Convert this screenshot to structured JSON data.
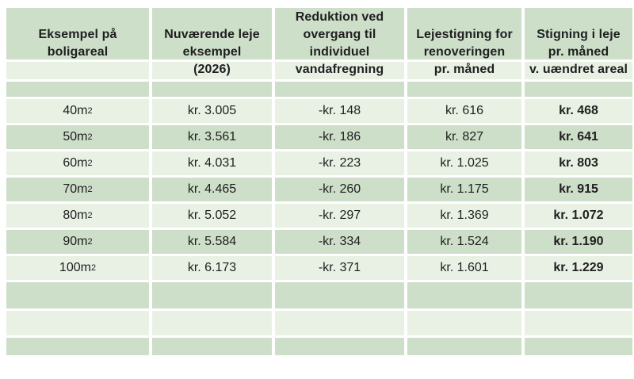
{
  "table": {
    "title_semantic": "Husleje-eksempler tabel",
    "header": {
      "columns": [
        {
          "id": "area",
          "lines": [
            "Eksempel på",
            "boligareal"
          ]
        },
        {
          "id": "current",
          "lines": [
            "Nuværende leje",
            "eksempel",
            "(2026)"
          ]
        },
        {
          "id": "reduction",
          "lines": [
            "Reduktion ved",
            "overgang til",
            "individuel",
            "vandafregning"
          ]
        },
        {
          "id": "increase",
          "lines": [
            "Lejestigning for",
            "renoveringen",
            "pr. måned"
          ]
        },
        {
          "id": "net",
          "lines": [
            "Stigning i leje",
            "pr. måned",
            "v. uændret areal"
          ]
        }
      ]
    },
    "rows": [
      {
        "area": "40m",
        "area_sup": "2",
        "current": "kr. 3.005",
        "reduction": "-kr. 148",
        "increase": "kr. 616",
        "net": "kr. 468"
      },
      {
        "area": "50m",
        "area_sup": "2",
        "current": "kr. 3.561",
        "reduction": "-kr. 186",
        "increase": "kr. 827",
        "net": "kr. 641"
      },
      {
        "area": "60m",
        "area_sup": "2",
        "current": "kr. 4.031",
        "reduction": "-kr. 223",
        "increase": "kr. 1.025",
        "net": "kr. 803"
      },
      {
        "area": "70m",
        "area_sup": "2",
        "current": "kr. 4.465",
        "reduction": "-kr. 260",
        "increase": "kr. 1.175",
        "net": "kr. 915"
      },
      {
        "area": "80m",
        "area_sup": "2",
        "current": "kr. 5.052",
        "reduction": "-kr. 297",
        "increase": "kr. 1.369",
        "net": "kr. 1.072"
      },
      {
        "area": "90m",
        "area_sup": "2",
        "current": "kr. 5.584",
        "reduction": "-kr. 334",
        "increase": "kr. 1.524",
        "net": "kr. 1.190"
      },
      {
        "area": "100m",
        "area_sup": "2",
        "current": "kr. 6.173",
        "reduction": "-kr. 371",
        "increase": "kr. 1.601",
        "net": "kr. 1.229"
      }
    ]
  },
  "colors": {
    "band_dark": "#cddec9",
    "band_light": "#e9f1e5",
    "text": "#1f1f1f",
    "background": "#ffffff"
  }
}
